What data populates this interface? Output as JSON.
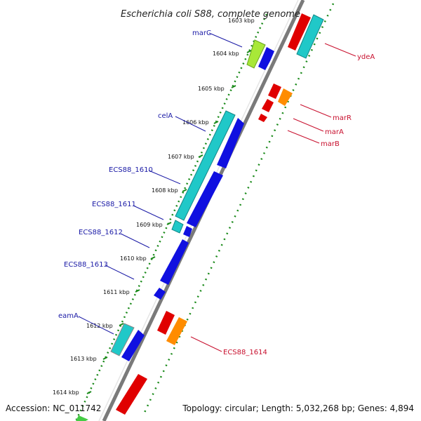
{
  "title": "Escherichia coli S88, complete genome",
  "accession": "Accession: NC_011742",
  "topology": "Topology: circular; Length: 5,032,268 bp; Genes: 4,894",
  "kbp_labels": [
    "1603 kbp",
    "1604 kbp",
    "1605 kbp",
    "1606 kbp",
    "1607 kbp",
    "1608 kbp",
    "1609 kbp",
    "1610 kbp",
    "1611 kbp",
    "1612 kbp",
    "1613 kbp",
    "1614 kbp"
  ],
  "left_genes": [
    "marC",
    "celA",
    "ECS88_1610",
    "ECS88_1611",
    "ECS88_1612",
    "ECS88_1613",
    "eamA"
  ],
  "right_genes": [
    "ydeA",
    "marR",
    "marA",
    "marB",
    "ECS88_1614"
  ],
  "colors": {
    "forward_strand": "#1010e0",
    "reverse_strand": "#e00000",
    "cyan_gene": "#20c8c8",
    "lime_gene": "#a8e838",
    "orange_gene": "#ff8c00",
    "tick_dotted": "#1a8a1a",
    "backbone": "#7a7a7a"
  }
}
